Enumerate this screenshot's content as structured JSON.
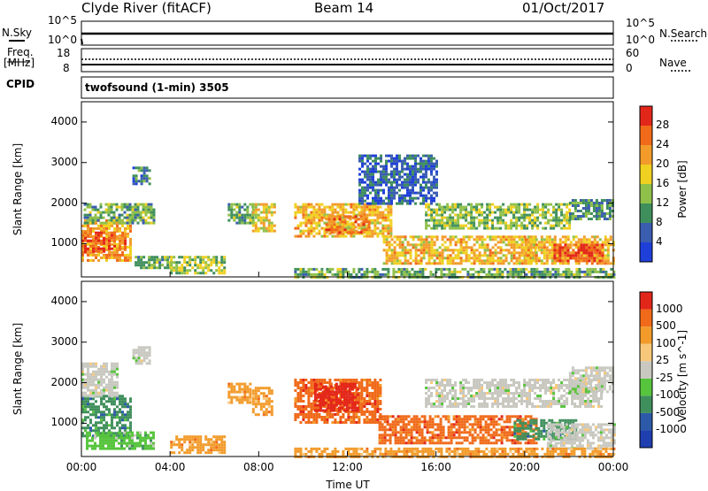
{
  "header": {
    "station": "Clyde River (fitACF)",
    "beam": "Beam 14",
    "date": "01/Oct/2017"
  },
  "noise_panel": {
    "left_label": "N.Sky",
    "right_label": "N.Search",
    "left_ticks": [
      "10^5",
      "10^0"
    ],
    "right_ticks": [
      "10^5",
      "10^0"
    ]
  },
  "freq_panel": {
    "left_label_line1": "Freq.",
    "left_label_line2": "[MHz]",
    "right_label": "Nave",
    "left_ticks": [
      "18",
      "8"
    ],
    "right_ticks": [
      "60",
      "0"
    ]
  },
  "cpid": {
    "label": "CPID",
    "value": "twofsound (1-min) 3505"
  },
  "colors": {
    "power_scale": [
      "#1f3fd9",
      "#3a5db0",
      "#3f8f5c",
      "#8fc04a",
      "#f0d020",
      "#f29b2a",
      "#f06a1a",
      "#e3261a"
    ],
    "velocity_scale": [
      "#e3261a",
      "#f06a1a",
      "#f29b2a",
      "#f7c77a",
      "#c8c8c0",
      "#57c43d",
      "#3f8f5c",
      "#2d5aa8",
      "#1f3fb0"
    ]
  },
  "chart_data": [
    {
      "type": "heatmap",
      "name_printed": "",
      "quantity": "Power",
      "ylabel": "Slant Range [km]",
      "xlabel": "",
      "ylim": [
        180,
        4500
      ],
      "xlim_hours": [
        0,
        24
      ],
      "y_ticks": [
        "4000",
        "3000",
        "2000",
        "1000"
      ],
      "y_tick_values": [
        4000,
        3000,
        2000,
        1000
      ],
      "colorbar": {
        "label": "Power [dB]",
        "tick_labels": [
          "28",
          "24",
          "20",
          "16",
          "12",
          "8",
          "4"
        ],
        "tick_values": [
          28,
          24,
          20,
          16,
          12,
          8,
          4
        ],
        "range": [
          0,
          32
        ]
      },
      "echo_regions": [
        {
          "t0": 0.0,
          "t1": 2.2,
          "r0": 600,
          "r1": 1600,
          "level": 22
        },
        {
          "t0": 0.0,
          "t1": 1.0,
          "r0": 800,
          "r1": 1300,
          "level": 28
        },
        {
          "t0": 1.2,
          "t1": 2.0,
          "r0": 900,
          "r1": 1300,
          "level": 26
        },
        {
          "t0": 0.1,
          "t1": 3.3,
          "r0": 1500,
          "r1": 2000,
          "level": 12
        },
        {
          "t0": 2.3,
          "t1": 3.1,
          "r0": 2500,
          "r1": 2900,
          "level": 8
        },
        {
          "t0": 2.4,
          "t1": 4.0,
          "r0": 400,
          "r1": 700,
          "level": 12
        },
        {
          "t0": 4.0,
          "t1": 6.4,
          "r0": 300,
          "r1": 700,
          "level": 14
        },
        {
          "t0": 6.6,
          "t1": 7.7,
          "r0": 1500,
          "r1": 2000,
          "level": 12
        },
        {
          "t0": 7.7,
          "t1": 8.7,
          "r0": 1300,
          "r1": 2000,
          "level": 18
        },
        {
          "t0": 9.6,
          "t1": 14.0,
          "r0": 1200,
          "r1": 2000,
          "level": 20
        },
        {
          "t0": 11.0,
          "t1": 13.0,
          "r0": 1300,
          "r1": 1700,
          "level": 24
        },
        {
          "t0": 13.6,
          "t1": 20.5,
          "r0": 500,
          "r1": 1200,
          "level": 20
        },
        {
          "t0": 15.5,
          "t1": 22.0,
          "r0": 1400,
          "r1": 2000,
          "level": 14
        },
        {
          "t0": 20.0,
          "t1": 24.0,
          "r0": 500,
          "r1": 1200,
          "level": 20
        },
        {
          "t0": 21.3,
          "t1": 23.5,
          "r0": 600,
          "r1": 1000,
          "level": 28
        },
        {
          "t0": 22.0,
          "t1": 24.0,
          "r0": 1600,
          "r1": 2100,
          "level": 10
        },
        {
          "t0": 9.6,
          "t1": 24.0,
          "r0": 180,
          "r1": 400,
          "level": 12
        },
        {
          "t0": 12.5,
          "t1": 16.0,
          "r0": 2000,
          "r1": 3200,
          "level": 6
        }
      ]
    },
    {
      "type": "heatmap",
      "name_printed": "",
      "quantity": "Velocity",
      "ylabel": "Slant Range [km]",
      "xlabel": "Time UT",
      "ylim": [
        180,
        4500
      ],
      "xlim_hours": [
        0,
        24
      ],
      "y_ticks": [
        "4000",
        "3000",
        "2000",
        "1000"
      ],
      "y_tick_values": [
        4000,
        3000,
        2000,
        1000
      ],
      "x_ticks": [
        "00:00",
        "04:00",
        "08:00",
        "12:00",
        "16:00",
        "20:00",
        "00:00"
      ],
      "x_tick_values": [
        0,
        4,
        8,
        12,
        16,
        20,
        24
      ],
      "colorbar": {
        "label": "Velocity [m s^-1]",
        "tick_labels": [
          "1000",
          "500",
          "100",
          "25",
          "-25",
          "-100",
          "-500",
          "-1000"
        ]
      },
      "echo_regions": [
        {
          "t0": 0.0,
          "t1": 2.2,
          "r0": 700,
          "r1": 1700,
          "cls": 6
        },
        {
          "t0": 0.2,
          "t1": 3.3,
          "r0": 400,
          "r1": 800,
          "cls": 5
        },
        {
          "t0": 2.3,
          "t1": 3.1,
          "r0": 2500,
          "r1": 2900,
          "cls": 4
        },
        {
          "t0": 0.0,
          "t1": 1.6,
          "r0": 1700,
          "r1": 2500,
          "cls": 4
        },
        {
          "t0": 4.0,
          "t1": 6.4,
          "r0": 300,
          "r1": 700,
          "cls": 2
        },
        {
          "t0": 6.6,
          "t1": 7.6,
          "r0": 1500,
          "r1": 2000,
          "cls": 2
        },
        {
          "t0": 7.7,
          "t1": 8.6,
          "r0": 1200,
          "r1": 1900,
          "cls": 2
        },
        {
          "t0": 9.6,
          "t1": 13.5,
          "r0": 1000,
          "r1": 2100,
          "cls": 1
        },
        {
          "t0": 10.5,
          "t1": 12.5,
          "r0": 1300,
          "r1": 2000,
          "cls": 0
        },
        {
          "t0": 13.4,
          "t1": 20.5,
          "r0": 500,
          "r1": 1200,
          "cls": 1
        },
        {
          "t0": 15.5,
          "t1": 23.5,
          "r0": 1400,
          "r1": 2100,
          "cls": 4
        },
        {
          "t0": 19.5,
          "t1": 22.3,
          "r0": 600,
          "r1": 1100,
          "cls": 6
        },
        {
          "t0": 21.0,
          "t1": 24.0,
          "r0": 400,
          "r1": 1000,
          "cls": 4
        },
        {
          "t0": 22.0,
          "t1": 24.0,
          "r0": 1800,
          "r1": 2400,
          "cls": 4
        },
        {
          "t0": 9.6,
          "t1": 24.0,
          "r0": 180,
          "r1": 400,
          "cls": 2
        }
      ]
    }
  ]
}
